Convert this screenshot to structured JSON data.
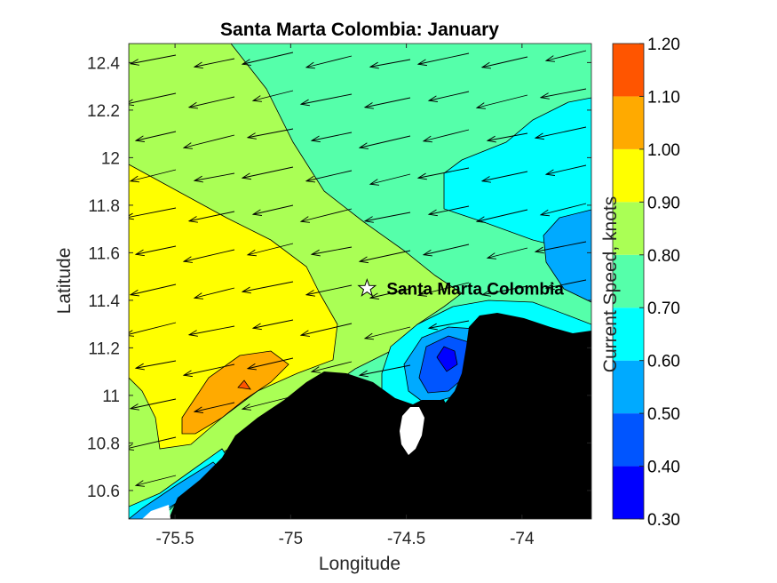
{
  "chart_data": {
    "type": "contour map with current vectors",
    "title": "Santa Marta Colombia: January",
    "xlabel": "Longitude",
    "ylabel": "Latitude",
    "xlim": [
      -75.7,
      -73.7
    ],
    "ylim": [
      10.48,
      12.48
    ],
    "xticks": [
      -75.5,
      -75,
      -74.5,
      -74
    ],
    "xtick_labels": [
      "-75.5",
      "-75",
      "-74.5",
      "-74"
    ],
    "yticks": [
      10.6,
      10.8,
      11,
      11.2,
      11.4,
      11.6,
      11.8,
      12,
      12.2,
      12.4
    ],
    "ytick_labels": [
      "10.6",
      "10.8",
      "11",
      "11.2",
      "11.4",
      "11.6",
      "11.8",
      "12",
      "12.2",
      "12.4"
    ],
    "colorbar": {
      "label": "Current Speed, knots",
      "levels": [
        0.3,
        0.4,
        0.5,
        0.6,
        0.7,
        0.8,
        0.9,
        1.0,
        1.1,
        1.2
      ],
      "level_labels": [
        "0.30",
        "0.40",
        "0.50",
        "0.60",
        "0.70",
        "0.80",
        "0.90",
        "1.00",
        "1.10",
        "1.20"
      ],
      "colors": [
        "#0000ff",
        "#0055ff",
        "#00aaff",
        "#00ffff",
        "#55ffaa",
        "#aaff55",
        "#ffff00",
        "#ffaa00",
        "#ff5500"
      ]
    },
    "marker": {
      "label": "Santa Marta Colombia",
      "lon": -74.67,
      "lat": 11.45,
      "symbol": "star"
    },
    "land_color": "#000000",
    "vector_direction": "westward, slightly southwest",
    "regions": [
      {
        "name": "background",
        "level": "0.70-0.80",
        "color": "#55ffaa"
      },
      {
        "name": "north-central band",
        "level": "0.80-0.90",
        "color": "#aaff55"
      },
      {
        "name": "western core",
        "level": "0.90-1.00",
        "color": "#ffff00"
      },
      {
        "name": "southwest jet",
        "level": "1.00-1.10",
        "color": "#ffaa00"
      },
      {
        "name": "jet core",
        "level": "1.10-1.20",
        "color": "#ff5500"
      },
      {
        "name": "eastern low",
        "level": "0.60-0.70",
        "color": "#00ffff"
      },
      {
        "name": "far-east low",
        "level": "0.50-0.60",
        "color": "#00aaff"
      },
      {
        "name": "nearshore minimum",
        "level": "0.40-0.50",
        "color": "#0055ff"
      },
      {
        "name": "nearshore core",
        "level": "0.30-0.40",
        "color": "#0000ff"
      }
    ]
  }
}
